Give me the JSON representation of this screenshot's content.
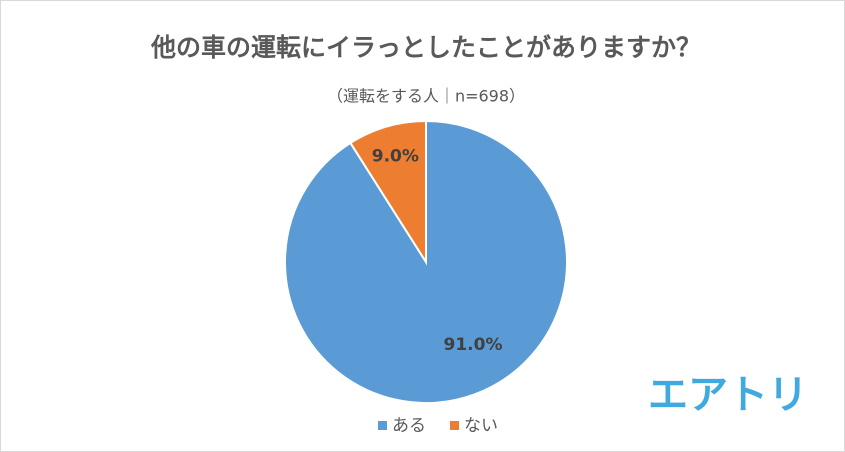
{
  "chart_data": {
    "type": "pie",
    "title": "他の車の運転にイラっとしたことがありますか？",
    "subtitle": "（運転をする人｜n=698）",
    "categories": [
      "ある",
      "ない"
    ],
    "values": [
      91.0,
      9.0
    ],
    "value_labels": [
      "91.0%",
      "9.0%"
    ],
    "colors": [
      "#5b9bd5",
      "#ed7d31"
    ],
    "legend": "bottom"
  },
  "brand": "エアトリ"
}
